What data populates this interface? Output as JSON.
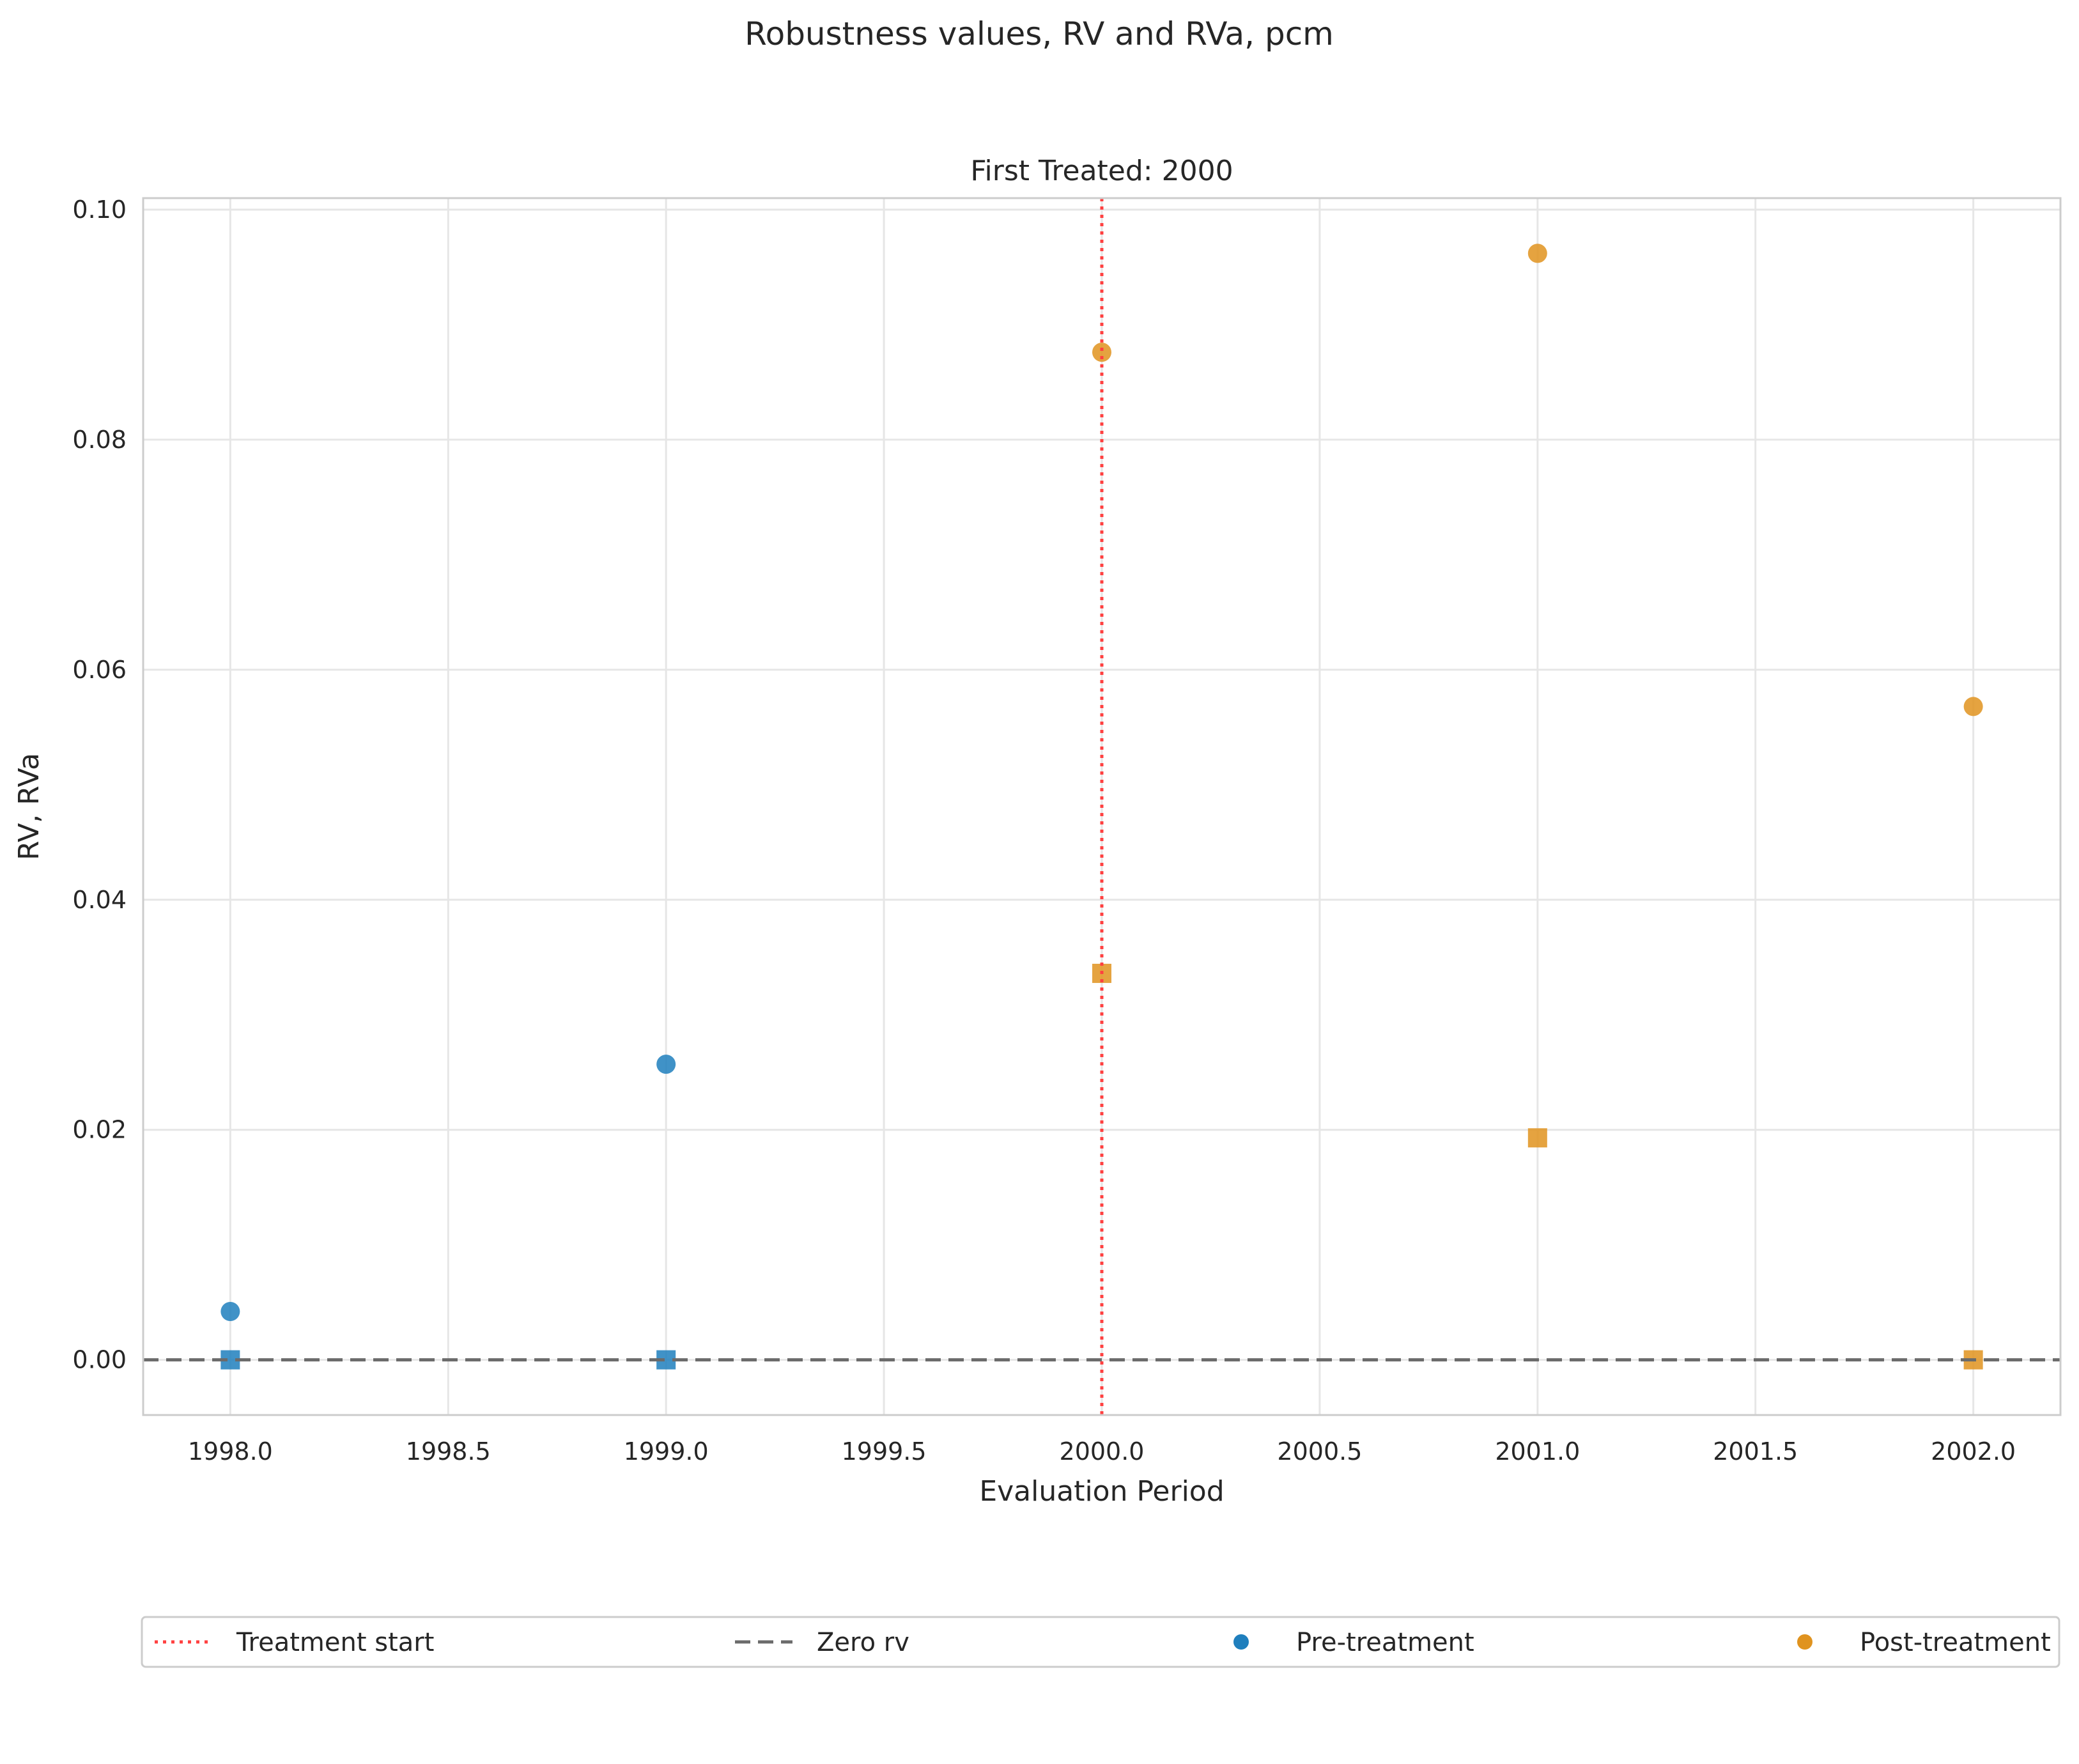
{
  "chart_data": {
    "type": "scatter",
    "title": "Robustness values, RV and RVa, pcm",
    "subtitle": "First Treated: 2000",
    "xlabel": "Evaluation Period",
    "ylabel": "RV, RVa",
    "xlim": [
      1997.8,
      2002.2
    ],
    "ylim": [
      -0.0048,
      0.101
    ],
    "xticks": [
      1998.0,
      1998.5,
      1999.0,
      1999.5,
      2000.0,
      2000.5,
      2001.0,
      2001.5,
      2002.0
    ],
    "xtick_labels": [
      "1998.0",
      "1998.5",
      "1999.0",
      "1999.5",
      "2000.0",
      "2000.5",
      "2001.0",
      "2001.5",
      "2002.0"
    ],
    "yticks": [
      0.0,
      0.02,
      0.04,
      0.06,
      0.08,
      0.1
    ],
    "ytick_labels": [
      "0.00",
      "0.02",
      "0.04",
      "0.06",
      "0.08",
      "0.10"
    ],
    "grid": true,
    "legend_position": "bottom, outside plot",
    "reference_lines": [
      {
        "name": "Treatment start",
        "orientation": "vertical",
        "value": 2000,
        "style": "dotted",
        "color": "#ff4040"
      },
      {
        "name": "Zero rv",
        "orientation": "horizontal",
        "value": 0,
        "style": "dashed",
        "color": "#6b6b6b"
      }
    ],
    "series": [
      {
        "name": "Pre-treatment",
        "color": "#1f7fbd",
        "rv": {
          "marker": "circle",
          "x": [
            1998,
            1999
          ],
          "y": [
            0.0042,
            0.0257
          ]
        },
        "rva": {
          "marker": "square",
          "x": [
            1998,
            1999
          ],
          "y": [
            0.0,
            0.0
          ]
        }
      },
      {
        "name": "Post-treatment",
        "color": "#e0931f",
        "rv": {
          "marker": "circle",
          "x": [
            2000,
            2001,
            2002
          ],
          "y": [
            0.0876,
            0.0962,
            0.0568
          ]
        },
        "rva": {
          "marker": "square",
          "x": [
            2000,
            2001,
            2002
          ],
          "y": [
            0.0336,
            0.0193,
            0.0
          ]
        }
      }
    ]
  },
  "legend": {
    "treatment_start": "Treatment start",
    "zero_rv": "Zero rv",
    "pre_treatment": "Pre-treatment",
    "post_treatment": "Post-treatment"
  },
  "colors": {
    "pre": "#1f7fbd",
    "post": "#e0931f",
    "treatment_line": "#ff4040",
    "zero_line": "#6b6b6b",
    "grid": "#e6e6e6",
    "frame": "#cccccc"
  }
}
